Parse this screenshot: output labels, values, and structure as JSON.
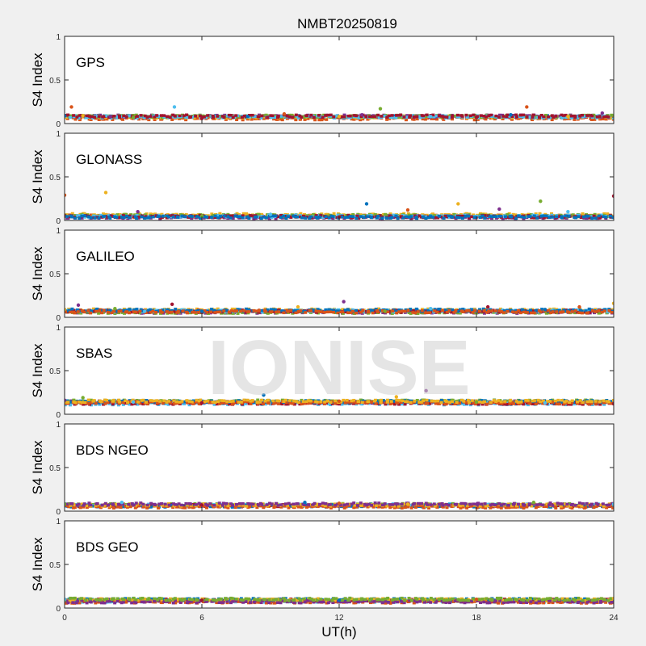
{
  "figure": {
    "title": "NMBT20250819",
    "xlabel": "UT(h)",
    "watermark": "IONISE",
    "series_colors": [
      "#0072BD",
      "#D95319",
      "#EDB120",
      "#7E2F8E",
      "#77AC30",
      "#4DBEEE",
      "#A2142F"
    ]
  },
  "chart_data": [
    {
      "type": "scatter",
      "panel_label": "GPS",
      "ylabel": "S4 Index",
      "xlim": [
        0,
        24
      ],
      "ylim": [
        0,
        1
      ],
      "xticks": [
        0,
        6,
        12,
        18,
        24
      ],
      "yticks": [
        0,
        0.5,
        1
      ],
      "xtick_labels_shown": false,
      "typical_s4": 0.07,
      "x": [
        0,
        0.3,
        0.8,
        2,
        3,
        4.8,
        6,
        8,
        9.6,
        12,
        13,
        13.8,
        16,
        18,
        19.5,
        20.2,
        22,
        23.5,
        24
      ],
      "y": [
        0.09,
        0.19,
        0.09,
        0.08,
        0.07,
        0.19,
        0.06,
        0.08,
        0.11,
        0.08,
        0.1,
        0.17,
        0.08,
        0.07,
        0.1,
        0.19,
        0.08,
        0.12,
        0.09
      ]
    },
    {
      "type": "scatter",
      "panel_label": "GLONASS",
      "ylabel": "S4 Index",
      "xlim": [
        0,
        24
      ],
      "ylim": [
        0,
        1
      ],
      "xticks": [
        0,
        6,
        12,
        18,
        24
      ],
      "yticks": [
        0,
        0.5,
        1
      ],
      "xtick_labels_shown": false,
      "typical_s4": 0.05,
      "x": [
        0,
        1.8,
        3.2,
        6,
        9,
        12,
        13.2,
        15,
        17.2,
        19,
        20.8,
        22,
        24
      ],
      "y": [
        0.29,
        0.32,
        0.1,
        0.05,
        0.07,
        0.04,
        0.19,
        0.12,
        0.19,
        0.13,
        0.22,
        0.1,
        0.28
      ]
    },
    {
      "type": "scatter",
      "panel_label": "GALILEO",
      "ylabel": "S4 Index",
      "xlim": [
        0,
        24
      ],
      "ylim": [
        0,
        1
      ],
      "xticks": [
        0,
        6,
        12,
        18,
        24
      ],
      "yticks": [
        0,
        0.5,
        1
      ],
      "xtick_labels_shown": false,
      "typical_s4": 0.07,
      "x": [
        0,
        0.6,
        2.2,
        3.5,
        4.7,
        6,
        8.5,
        10.2,
        12.2,
        14,
        16,
        18.5,
        21,
        22.5,
        24
      ],
      "y": [
        0.09,
        0.14,
        0.1,
        0.07,
        0.15,
        0.07,
        0.08,
        0.12,
        0.18,
        0.07,
        0.1,
        0.12,
        0.09,
        0.12,
        0.16
      ]
    },
    {
      "type": "scatter",
      "panel_label": "SBAS",
      "ylabel": "S4 Index",
      "xlim": [
        0,
        24
      ],
      "ylim": [
        0,
        1
      ],
      "xticks": [
        0,
        6,
        12,
        18,
        24
      ],
      "yticks": [
        0,
        0.5,
        1
      ],
      "xtick_labels_shown": false,
      "typical_s4": 0.13,
      "x": [
        0,
        0.8,
        3,
        6,
        8.7,
        12,
        14.5,
        15.8,
        18,
        21,
        24
      ],
      "y": [
        0.16,
        0.19,
        0.14,
        0.13,
        0.22,
        0.15,
        0.2,
        0.27,
        0.14,
        0.13,
        0.12
      ]
    },
    {
      "type": "scatter",
      "panel_label": "BDS NGEO",
      "ylabel": "S4 Index",
      "xlim": [
        0,
        24
      ],
      "ylim": [
        0,
        1
      ],
      "xticks": [
        0,
        6,
        12,
        18,
        24
      ],
      "yticks": [
        0,
        0.5,
        1
      ],
      "xtick_labels_shown": false,
      "typical_s4": 0.06,
      "x": [
        0,
        2.5,
        6,
        10.5,
        12,
        15,
        18,
        20.5,
        24
      ],
      "y": [
        0.08,
        0.1,
        0.07,
        0.1,
        0.09,
        0.08,
        0.08,
        0.1,
        0.08
      ]
    },
    {
      "type": "scatter",
      "panel_label": "BDS GEO",
      "ylabel": "S4 Index",
      "xlim": [
        0,
        24
      ],
      "ylim": [
        0,
        1
      ],
      "xticks": [
        0,
        6,
        12,
        18,
        24
      ],
      "yticks": [
        0,
        0.5,
        1
      ],
      "xtick_labels_shown": true,
      "typical_s4": 0.08,
      "x": [
        0,
        6,
        12,
        18,
        24
      ],
      "y": [
        0.1,
        0.09,
        0.09,
        0.1,
        0.11
      ]
    }
  ]
}
